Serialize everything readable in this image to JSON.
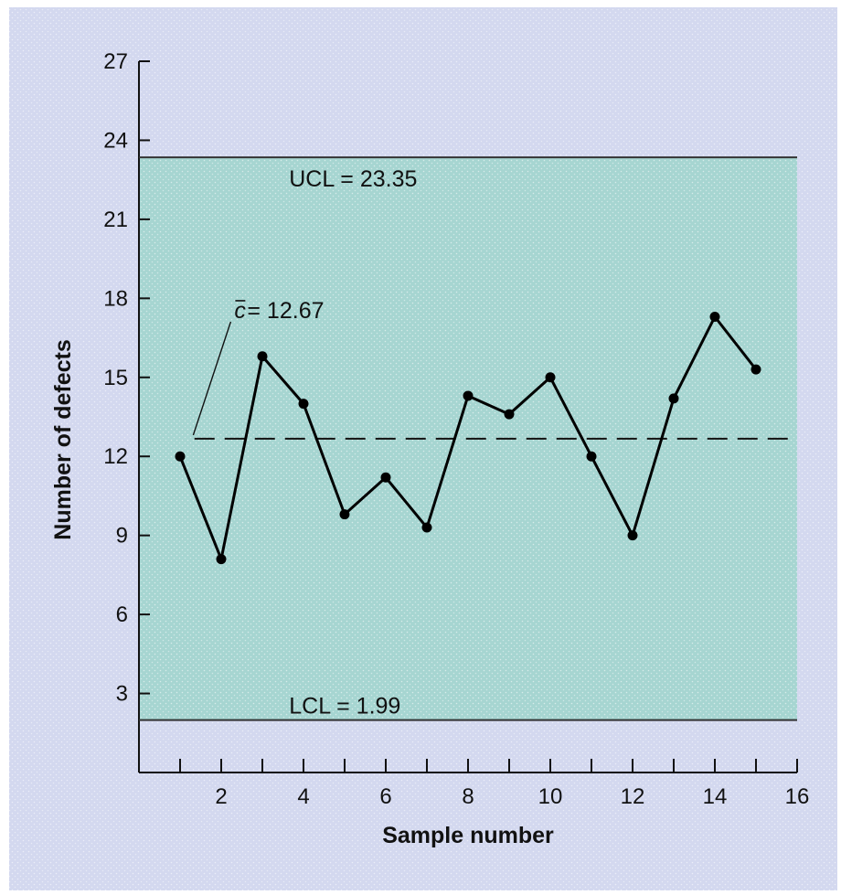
{
  "chart_data": {
    "type": "line",
    "xlabel": "Sample number",
    "ylabel": "Number of defects",
    "xlim": [
      0,
      16
    ],
    "ylim": [
      0,
      27
    ],
    "x_ticks": [
      2,
      4,
      6,
      8,
      10,
      12,
      14,
      16
    ],
    "x_minor_ticks": [
      1,
      3,
      5,
      7,
      9,
      11,
      13,
      15
    ],
    "y_ticks": [
      3,
      6,
      9,
      12,
      15,
      18,
      21,
      24,
      27
    ],
    "series": [
      {
        "x": [
          1,
          2,
          3,
          4,
          5,
          6,
          7,
          8,
          9,
          10,
          11,
          12,
          13,
          14,
          15
        ],
        "values": [
          12,
          8.1,
          15.8,
          14,
          9.8,
          11.2,
          9.3,
          14.3,
          13.6,
          15,
          12,
          9,
          14.2,
          17.3,
          15.3
        ]
      }
    ],
    "control_limits": {
      "ucl": {
        "value": 23.35,
        "label": "UCL = 23.35"
      },
      "center": {
        "value": 12.67,
        "label_symbol": "c",
        "label_value": " = 12.67"
      },
      "lcl": {
        "value": 1.99,
        "label": "LCL = 1.99"
      }
    },
    "grid": false,
    "colors": {
      "page_background": "#d3d8ef",
      "control_band": "#a6d5d1",
      "line": "#000000"
    }
  }
}
